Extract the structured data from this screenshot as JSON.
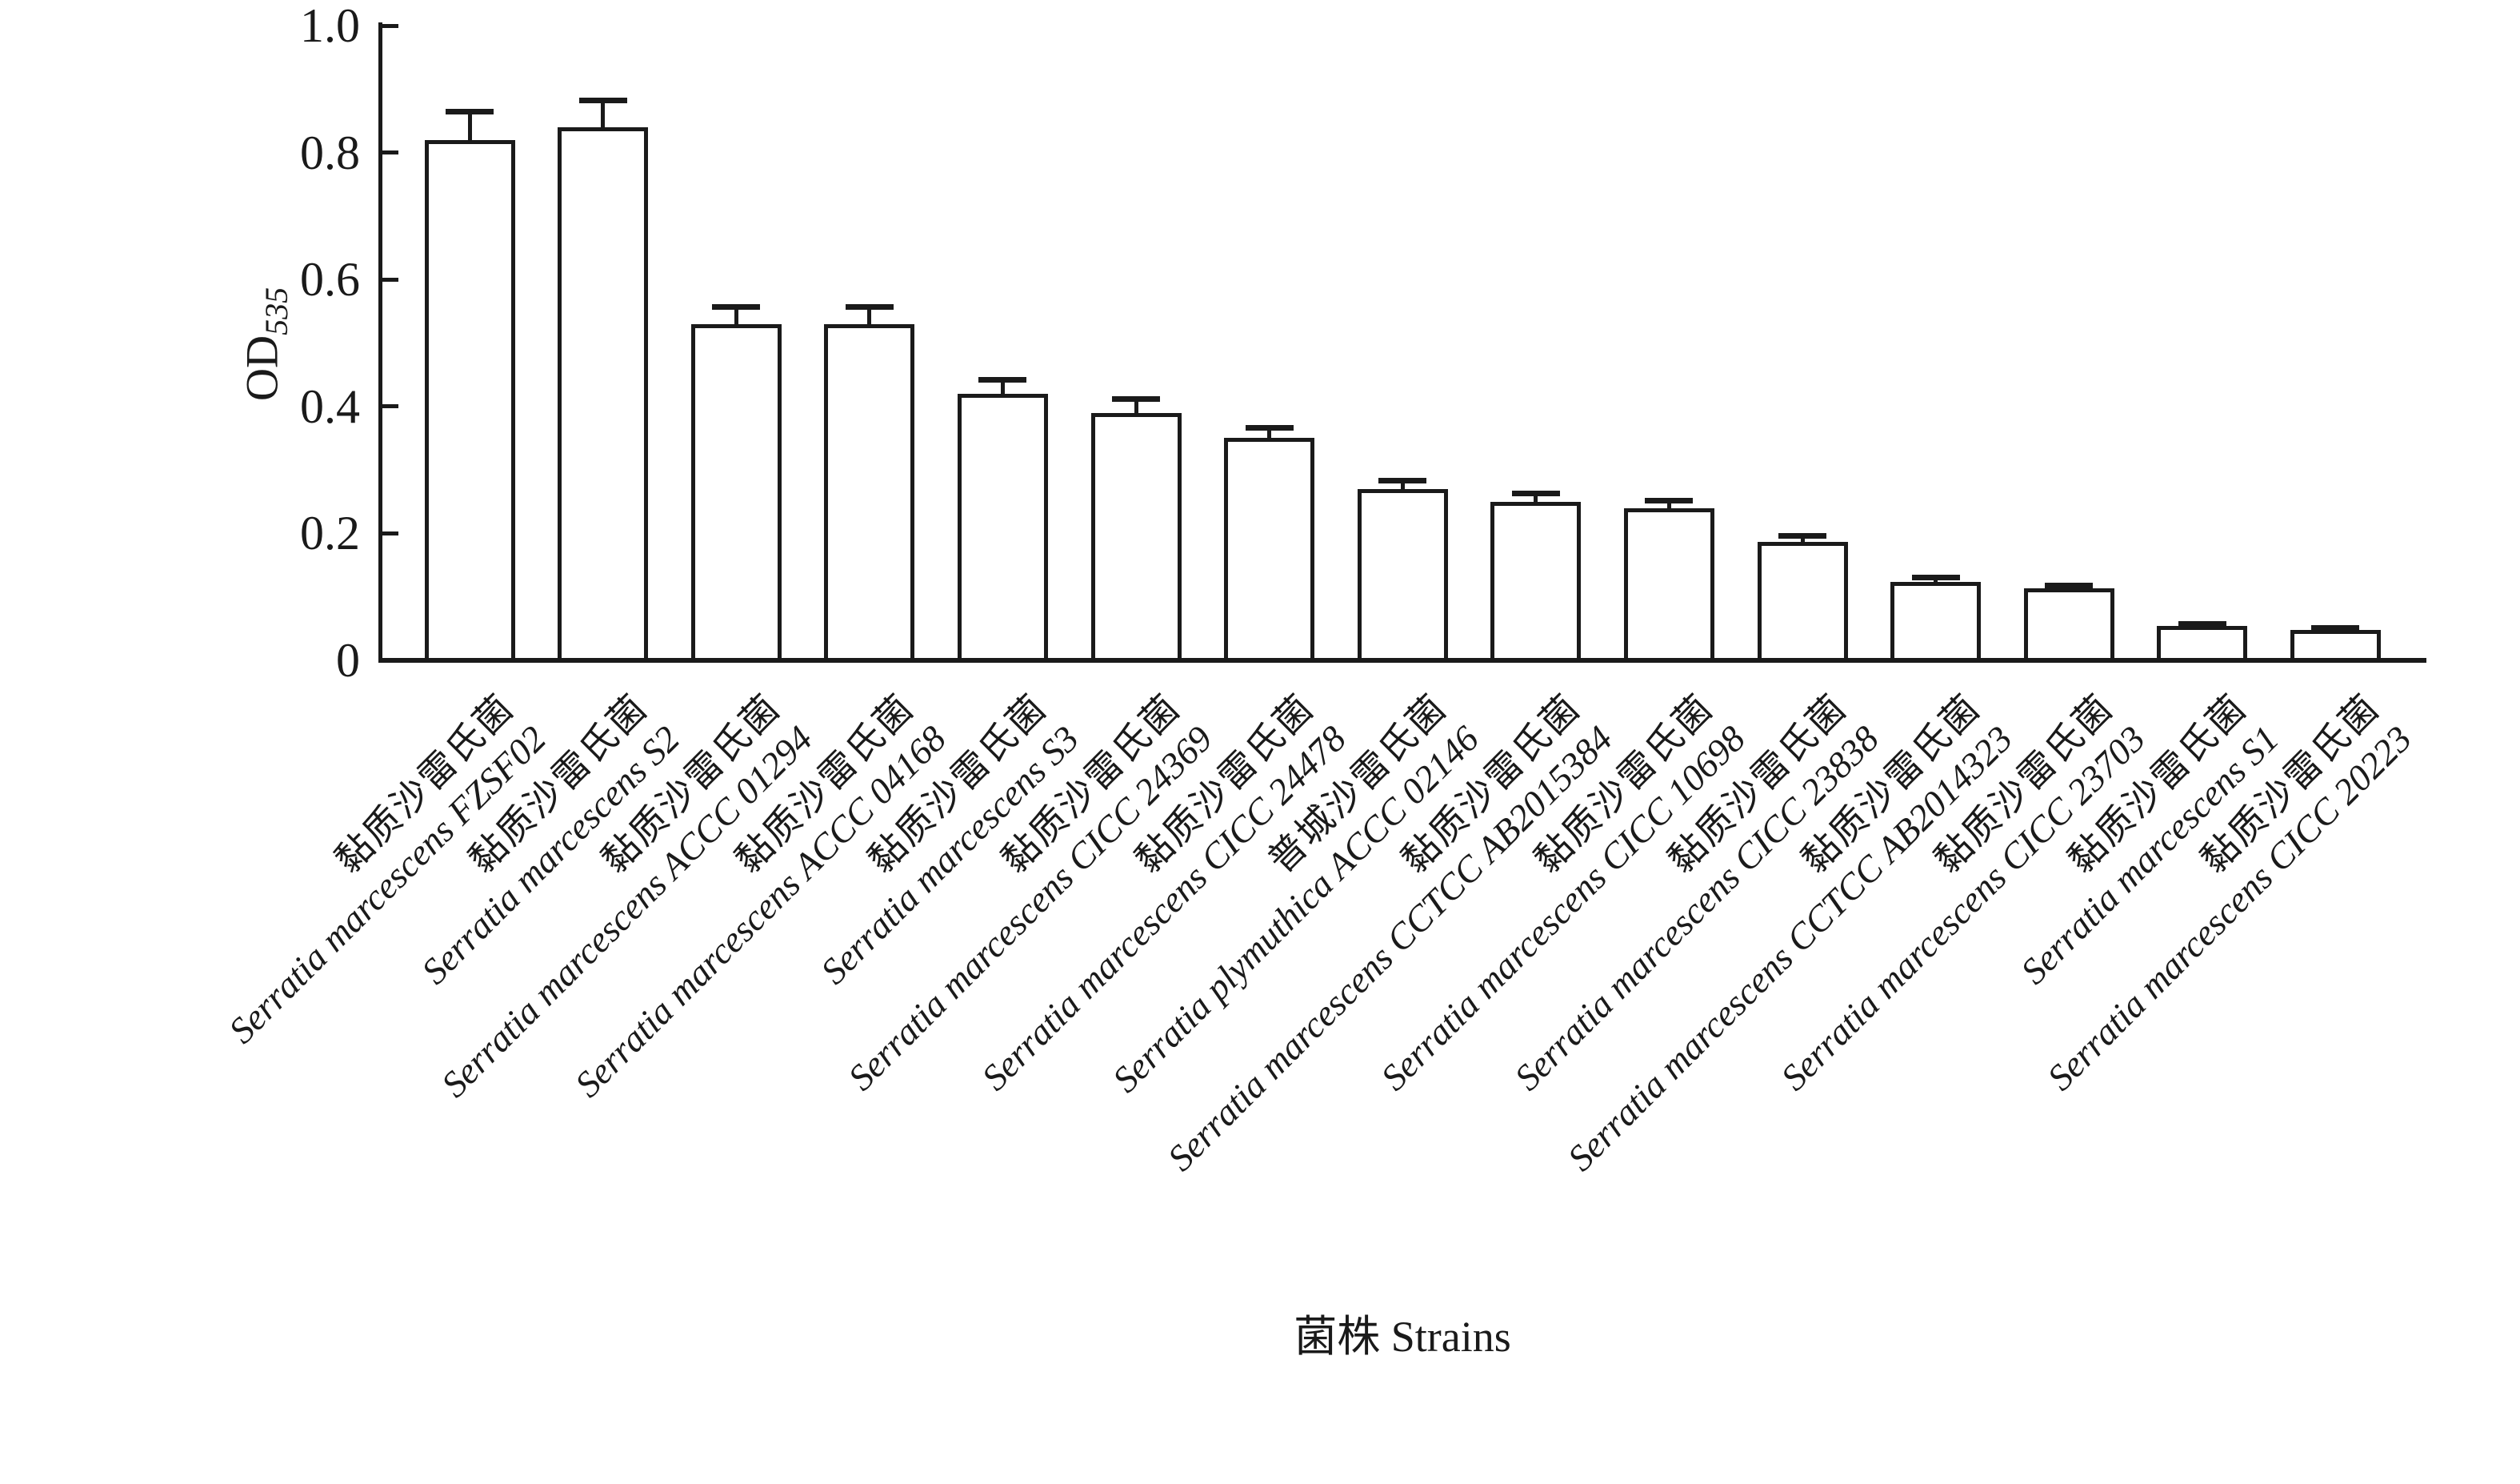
{
  "figure": {
    "background": "#ffffff",
    "ink_color": "#1a1a1a"
  },
  "chart_data": {
    "type": "bar",
    "title": "",
    "xlabel": "菌株 Strains",
    "ylabel": {
      "main": "OD",
      "subscript": "535"
    },
    "ylim": [
      0,
      1.0
    ],
    "yticks": [
      0,
      0.2,
      0.4,
      0.6,
      0.8,
      1.0
    ],
    "ytick_labels": [
      "0",
      "0.2",
      "0.4",
      "0.6",
      "0.8",
      "1.0"
    ],
    "grid": false,
    "legend": false,
    "bar_fill": "#ffffff",
    "bar_edge": "#1a1a1a",
    "error_bars": "upper only, capped",
    "categories": [
      {
        "cn": "黏质沙雷氏菌",
        "latin": "Serratia marcescens FZSF02"
      },
      {
        "cn": "黏质沙雷氏菌",
        "latin": "Serratia marcescens S2"
      },
      {
        "cn": "黏质沙雷氏菌",
        "latin": "Serratia marcescens ACCC 01294"
      },
      {
        "cn": "黏质沙雷氏菌",
        "latin": "Serratia marcescens ACCC 04168"
      },
      {
        "cn": "黏质沙雷氏菌",
        "latin": "Serratia marcescens S3"
      },
      {
        "cn": "黏质沙雷氏菌",
        "latin": "Serratia marcescens CICC 24369"
      },
      {
        "cn": "黏质沙雷氏菌",
        "latin": "Serratia marcescens CICC 24478"
      },
      {
        "cn": "普城沙雷氏菌",
        "latin": "Serratia plymuthica ACCC 02146"
      },
      {
        "cn": "黏质沙雷氏菌",
        "latin": "Serratia marcescens CCTCC AB2015384"
      },
      {
        "cn": "黏质沙雷氏菌",
        "latin": "Serratia marcescens CICC 10698"
      },
      {
        "cn": "黏质沙雷氏菌",
        "latin": "Serratia marcescens CICC 23838"
      },
      {
        "cn": "黏质沙雷氏菌",
        "latin": "Serratia marcescens CCTCC AB2014323"
      },
      {
        "cn": "黏质沙雷氏菌",
        "latin": "Serratia marcescens CICC 23703"
      },
      {
        "cn": "黏质沙雷氏菌",
        "latin": "Serratia marcescens S1"
      },
      {
        "cn": "黏质沙雷氏菌",
        "latin": "Serratia marcescens CICC 20223"
      }
    ],
    "values": [
      0.82,
      0.84,
      0.53,
      0.53,
      0.42,
      0.39,
      0.35,
      0.27,
      0.25,
      0.24,
      0.187,
      0.124,
      0.113,
      0.054,
      0.048
    ],
    "errors": [
      0.045,
      0.043,
      0.028,
      0.028,
      0.023,
      0.022,
      0.017,
      0.014,
      0.013,
      0.012,
      0.01,
      0.007,
      0.006,
      0.004,
      0.004
    ]
  }
}
